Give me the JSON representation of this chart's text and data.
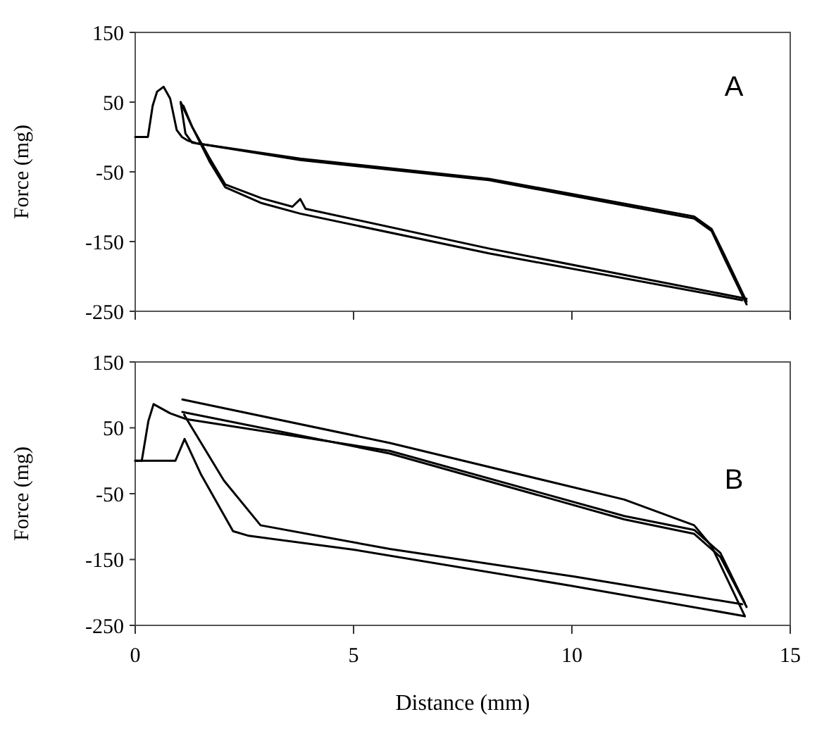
{
  "chart_data": [
    {
      "type": "line",
      "ylabel": "Force (mg)",
      "annotations": [
        "A"
      ],
      "xlim": [
        0,
        15
      ],
      "xticks": [
        0,
        5,
        10,
        15
      ],
      "ylim": [
        -250,
        150
      ],
      "yticks": [
        150,
        50,
        -50,
        -150,
        -250
      ],
      "tick_labels": "y",
      "grid": false,
      "marker": "none",
      "line_style": "solid",
      "series": [
        {
          "color": "#000000",
          "x": [
            0,
            0.29,
            0.4,
            0.5,
            0.65,
            0.8,
            0.95,
            1.07,
            1.2,
            1.4,
            3.78,
            8.1,
            12.8,
            13.2,
            13.5,
            14.0
          ],
          "values": [
            0,
            0,
            45,
            65,
            72,
            55,
            10,
            0,
            -5,
            -9,
            -31,
            -60,
            -114,
            -132,
            -170,
            -236
          ]
        },
        {
          "color": "#000000",
          "x": [
            1.04,
            1.3,
            1.7,
            2.06,
            2.9,
            3.6,
            3.78,
            3.9,
            8.1,
            14.0
          ],
          "values": [
            50,
            15,
            -30,
            -68,
            -88,
            -100,
            -89,
            -103,
            -160,
            -232
          ]
        },
        {
          "color": "#000000",
          "x": [
            1.04,
            1.15,
            1.3,
            3.78,
            8.1,
            12.8,
            13.2,
            13.5,
            14.0
          ],
          "values": [
            50,
            5,
            -8,
            -33,
            -62,
            -117,
            -135,
            -175,
            -240
          ]
        },
        {
          "color": "#000000",
          "x": [
            1.1,
            1.3,
            1.7,
            2.06,
            2.9,
            3.78,
            8.1,
            13.9
          ],
          "values": [
            45,
            15,
            -35,
            -72,
            -95,
            -110,
            -167,
            -234
          ]
        }
      ]
    },
    {
      "type": "line",
      "xlabel": "Distance (mm)",
      "ylabel": "Force (mg)",
      "annotations": [
        "B"
      ],
      "xlim": [
        0,
        15
      ],
      "xticks": [
        0,
        5,
        10,
        15
      ],
      "ylim": [
        -250,
        150
      ],
      "yticks": [
        150,
        50,
        -50,
        -150,
        -250
      ],
      "grid": false,
      "marker": "none",
      "line_style": "solid",
      "series": [
        {
          "color": "#000000",
          "x": [
            0,
            0.92,
            1.13,
            1.5,
            2.24,
            2.6,
            5,
            10,
            13.96
          ],
          "values": [
            0,
            0,
            33,
            -20,
            -107,
            -114,
            -135,
            -190,
            -236
          ]
        },
        {
          "color": "#000000",
          "x": [
            1.08,
            5.83,
            11.2,
            12.8,
            13.2,
            13.96
          ],
          "values": [
            93,
            27,
            -59,
            -98,
            -130,
            -236
          ]
        },
        {
          "color": "#000000",
          "x": [
            0,
            0.15,
            0.3,
            0.42,
            0.8,
            1.18,
            5.83,
            11.2,
            12.8,
            13.4,
            13.96
          ],
          "values": [
            0,
            0,
            60,
            86,
            72,
            63,
            15,
            -84,
            -105,
            -140,
            -216
          ]
        },
        {
          "color": "#000000",
          "x": [
            1.08,
            5.83,
            11.2,
            12.8,
            13.4,
            14.0
          ],
          "values": [
            74,
            11,
            -89,
            -111,
            -146,
            -222
          ]
        },
        {
          "color": "#000000",
          "x": [
            1.12,
            1.18,
            2.03,
            2.87,
            5.83,
            10.06,
            13.9
          ],
          "values": [
            70,
            63,
            -30,
            -98,
            -134,
            -176,
            -218
          ]
        }
      ]
    }
  ]
}
